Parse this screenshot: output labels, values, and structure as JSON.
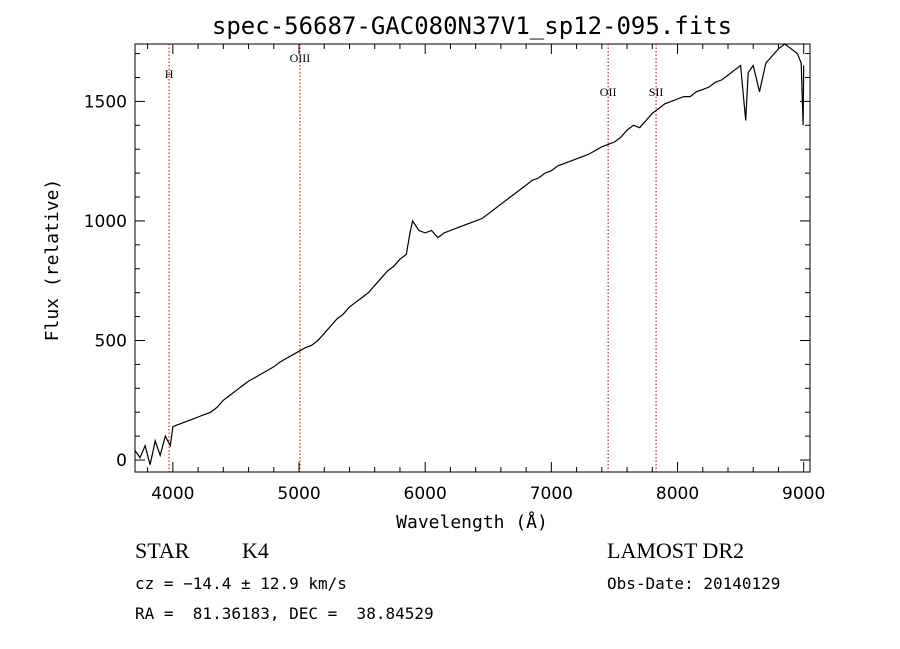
{
  "chart_data": {
    "type": "line",
    "title": "spec-56687-GAC080N37V1_sp12-095.fits",
    "xlabel": "Wavelength (Å)",
    "ylabel": "Flux (relative)",
    "xlim": [
      3700,
      9050
    ],
    "ylim": [
      -50,
      1740
    ],
    "xticks": [
      4000,
      5000,
      6000,
      7000,
      8000,
      9000
    ],
    "yticks": [
      0,
      500,
      1000,
      1500
    ],
    "grid": false,
    "series": [
      {
        "color": "#000000",
        "x": [
          3700,
          3740,
          3780,
          3820,
          3860,
          3900,
          3940,
          3980,
          4000,
          4050,
          4100,
          4150,
          4200,
          4250,
          4300,
          4350,
          4400,
          4450,
          4500,
          4550,
          4600,
          4650,
          4700,
          4750,
          4800,
          4850,
          4900,
          4950,
          5000,
          5050,
          5100,
          5150,
          5200,
          5250,
          5300,
          5350,
          5400,
          5450,
          5500,
          5550,
          5600,
          5650,
          5700,
          5750,
          5800,
          5850,
          5880,
          5900,
          5950,
          6000,
          6050,
          6100,
          6150,
          6200,
          6250,
          6300,
          6350,
          6400,
          6450,
          6500,
          6550,
          6600,
          6650,
          6700,
          6750,
          6800,
          6850,
          6900,
          6950,
          7000,
          7050,
          7100,
          7150,
          7200,
          7250,
          7300,
          7350,
          7400,
          7450,
          7500,
          7550,
          7600,
          7650,
          7700,
          7750,
          7800,
          7850,
          7900,
          7950,
          8000,
          8050,
          8100,
          8150,
          8200,
          8250,
          8300,
          8350,
          8400,
          8450,
          8500,
          8540,
          8560,
          8600,
          8650,
          8700,
          8750,
          8800,
          8850,
          8900,
          8950,
          8980,
          8995,
          9000
        ],
        "y": [
          40,
          10,
          60,
          -20,
          80,
          20,
          100,
          60,
          140,
          150,
          160,
          170,
          180,
          190,
          200,
          220,
          250,
          270,
          290,
          310,
          330,
          345,
          360,
          375,
          390,
          410,
          425,
          440,
          455,
          470,
          480,
          500,
          530,
          560,
          590,
          610,
          640,
          660,
          680,
          700,
          730,
          760,
          790,
          810,
          840,
          860,
          950,
          1000,
          960,
          950,
          960,
          930,
          950,
          960,
          970,
          980,
          990,
          1000,
          1010,
          1030,
          1050,
          1070,
          1090,
          1110,
          1130,
          1150,
          1170,
          1180,
          1200,
          1210,
          1230,
          1240,
          1250,
          1260,
          1270,
          1280,
          1295,
          1310,
          1320,
          1330,
          1350,
          1380,
          1400,
          1390,
          1420,
          1450,
          1470,
          1490,
          1500,
          1510,
          1520,
          1520,
          1540,
          1550,
          1560,
          1580,
          1590,
          1610,
          1630,
          1650,
          1420,
          1620,
          1650,
          1540,
          1660,
          1690,
          1720,
          1740,
          1720,
          1700,
          1660,
          1400,
          1650
        ]
      }
    ],
    "lines": [
      {
        "x": 3970,
        "label": "H"
      },
      {
        "x": 5007,
        "label": "OIII"
      },
      {
        "x": 7450,
        "label": "OII"
      },
      {
        "x": 7830,
        "label": "SII"
      }
    ]
  },
  "footer": {
    "class_label": "STAR",
    "subclass": "K4",
    "survey": "LAMOST DR2",
    "cz": "cz = −14.4 ± 12.9 km/s",
    "obs_date": "Obs-Date: 20140129",
    "coords": "RA =  81.36183, DEC =  38.84529"
  }
}
